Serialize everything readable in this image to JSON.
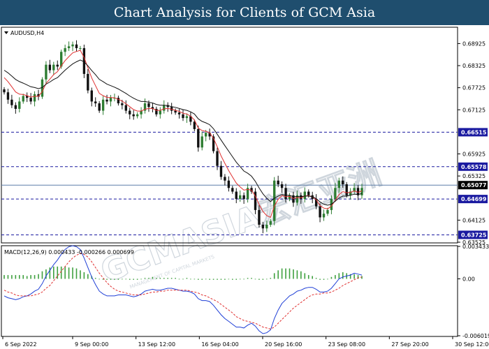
{
  "header": {
    "title": "Chart Analysis for Clients of GCM Asia"
  },
  "watermark": {
    "main": "GCMASIA宏汇亚洲",
    "sub": "MANAGEMENT OF CAPITAL MARKETS"
  },
  "main_panel": {
    "symbol_label": "AUDUSD,H4"
  },
  "macd_panel": {
    "label": "MACD(12,26,9) 0.000433 -0.000266 0.000699"
  },
  "colors": {
    "bull": "#2e7d32",
    "bear": "#111111",
    "ma_fast": "#e03030",
    "ma_slow": "#111111",
    "level": "#1a1aa0",
    "current": "#5f7fa8",
    "macd_line": "#1f3fd6",
    "signal_line": "#e03030",
    "histogram": "#3fa03f"
  },
  "chart_data": [
    {
      "type": "candlestick",
      "symbol": "AUDUSD",
      "timeframe": "H4",
      "ylim": [
        0.63525,
        0.6935
      ],
      "y_tick_labels": [
        "0.68925",
        "0.68325",
        "0.67725",
        "0.67125",
        "0.65925",
        "0.65325",
        "0.64125",
        "0.63525"
      ],
      "y_ticks": [
        0.68925,
        0.68325,
        0.67725,
        0.67125,
        0.65925,
        0.65325,
        0.64125,
        0.63525
      ],
      "x_tick_labels": [
        "6 Sep 2022",
        "9 Sep 00:00",
        "13 Sep 12:00",
        "16 Sep 04:00",
        "20 Sep 16:00",
        "23 Sep 08:00",
        "27 Sep 20:00",
        "30 Sep 12:00"
      ],
      "levels": [
        {
          "value": 0.66515,
          "label": "0.66515"
        },
        {
          "value": 0.65578,
          "label": "0.65578"
        },
        {
          "value": 0.64699,
          "label": "0.64699"
        },
        {
          "value": 0.63725,
          "label": "0.63725"
        }
      ],
      "current_price": {
        "value": 0.65077,
        "label": "0.65077"
      },
      "series": [
        {
          "name": "Close",
          "values": [
            0.676,
            0.674,
            0.6725,
            0.6715,
            0.6735,
            0.675,
            0.6745,
            0.6735,
            0.6755,
            0.6748,
            0.6795,
            0.6835,
            0.682,
            0.6835,
            0.683,
            0.687,
            0.688,
            0.6885,
            0.689,
            0.688,
            0.688,
            0.681,
            0.6765,
            0.6735,
            0.673,
            0.671,
            0.674,
            0.6735,
            0.6745,
            0.6745,
            0.673,
            0.6725,
            0.671,
            0.67,
            0.6695,
            0.67,
            0.671,
            0.673,
            0.672,
            0.6715,
            0.67,
            0.671,
            0.6725,
            0.672,
            0.671,
            0.6705,
            0.67,
            0.669,
            0.6695,
            0.668,
            0.666,
            0.661,
            0.664,
            0.665,
            0.664,
            0.66,
            0.656,
            0.653,
            0.652,
            0.65,
            0.649,
            0.647,
            0.648,
            0.647,
            0.65,
            0.649,
            0.644,
            0.64,
            0.639,
            0.64,
            0.641,
            0.652,
            0.651,
            0.65,
            0.647,
            0.648,
            0.646,
            0.648,
            0.647,
            0.649,
            0.648,
            0.647,
            0.645,
            0.642,
            0.643,
            0.644,
            0.647,
            0.65,
            0.652,
            0.651,
            0.648,
            0.649,
            0.65,
            0.648,
            0.65
          ]
        },
        {
          "name": "MA fast",
          "values": [
            0.68,
            0.6789,
            0.6775,
            0.6761,
            0.6755,
            0.6754,
            0.6751,
            0.6747,
            0.6749,
            0.6749,
            0.6762,
            0.6784,
            0.6796,
            0.6808,
            0.6816,
            0.6832,
            0.6846,
            0.6857,
            0.6867,
            0.6871,
            0.6874,
            0.6855,
            0.6827,
            0.6799,
            0.6778,
            0.6757,
            0.6751,
            0.6746,
            0.6746,
            0.6745,
            0.6741,
            0.6736,
            0.6729,
            0.6721,
            0.6713,
            0.6709,
            0.6709,
            0.6714,
            0.6716,
            0.6716,
            0.6711,
            0.6711,
            0.6715,
            0.6716,
            0.6714,
            0.6711,
            0.6708,
            0.6703,
            0.6701,
            0.6695,
            0.6685,
            0.6663,
            0.6656,
            0.6654,
            0.665,
            0.6635,
            0.6612,
            0.6587,
            0.6567,
            0.6547,
            0.653,
            0.6513,
            0.6503,
            0.6494,
            0.6496,
            0.6494,
            0.6478,
            0.6455,
            0.6436,
            0.6425,
            0.642,
            0.645,
            0.6469,
            0.6479,
            0.6476,
            0.6477,
            0.6471,
            0.6474,
            0.6473,
            0.6478,
            0.6479,
            0.6476,
            0.6468,
            0.6452,
            0.6445,
            0.6443,
            0.6451,
            0.6466,
            0.6482,
            0.649,
            0.6487,
            0.6488,
            0.6492,
            0.6488,
            0.6492
          ]
        },
        {
          "name": "MA slow",
          "values": [
            0.682,
            0.6813,
            0.6804,
            0.6795,
            0.6789,
            0.6785,
            0.678,
            0.6775,
            0.6773,
            0.677,
            0.6773,
            0.6782,
            0.6788,
            0.6795,
            0.68,
            0.681,
            0.682,
            0.6829,
            0.6837,
            0.6843,
            0.6848,
            0.6843,
            0.6832,
            0.6819,
            0.6808,
            0.6795,
            0.6789,
            0.6782,
            0.6778,
            0.6774,
            0.6769,
            0.6763,
            0.6757,
            0.675,
            0.6744,
            0.6739,
            0.6735,
            0.6735,
            0.6733,
            0.6731,
            0.6727,
            0.6725,
            0.6725,
            0.6724,
            0.6721,
            0.6719,
            0.6716,
            0.6713,
            0.6711,
            0.6707,
            0.6701,
            0.6688,
            0.6681,
            0.6677,
            0.6672,
            0.6661,
            0.6646,
            0.663,
            0.6615,
            0.66,
            0.6585,
            0.657,
            0.6558,
            0.6546,
            0.654,
            0.6532,
            0.6518,
            0.65,
            0.6484,
            0.6472,
            0.6463,
            0.6472,
            0.6478,
            0.6482,
            0.648,
            0.648,
            0.6476,
            0.6477,
            0.6476,
            0.6478,
            0.6478,
            0.6476,
            0.6471,
            0.6462,
            0.6456,
            0.6453,
            0.6456,
            0.6464,
            0.6473,
            0.6478,
            0.6478,
            0.648,
            0.6483,
            0.6482,
            0.6485
          ]
        }
      ]
    },
    {
      "type": "macd",
      "title": "MACD(12,26,9) 0.000433 -0.000266 0.000699",
      "ylim": [
        -0.006019,
        0.003433
      ],
      "y_tick_labels": [
        "0.003433",
        "0.00",
        "-0.006019"
      ],
      "y_ticks": [
        0.003433,
        0,
        -0.006019
      ],
      "series": [
        {
          "name": "MACD",
          "values": [
            -0.0018,
            -0.002,
            -0.0021,
            -0.0022,
            -0.0021,
            -0.0019,
            -0.0018,
            -0.0016,
            -0.0013,
            -0.0011,
            -0.0005,
            0.0003,
            0.0009,
            0.0015,
            0.002,
            0.0026,
            0.0031,
            0.0034,
            0.0035,
            0.0034,
            0.0031,
            0.0022,
            0.0012,
            0.0002,
            -0.0006,
            -0.0013,
            -0.0016,
            -0.0018,
            -0.0018,
            -0.0018,
            -0.0017,
            -0.0017,
            -0.0017,
            -0.0018,
            -0.0019,
            -0.0018,
            -0.0016,
            -0.0013,
            -0.0012,
            -0.0011,
            -0.0012,
            -0.0012,
            -0.0011,
            -0.001,
            -0.001,
            -0.0011,
            -0.0012,
            -0.0013,
            -0.0013,
            -0.0014,
            -0.0016,
            -0.0021,
            -0.0023,
            -0.0023,
            -0.0024,
            -0.0028,
            -0.0033,
            -0.0038,
            -0.0042,
            -0.0045,
            -0.0048,
            -0.0051,
            -0.0051,
            -0.0052,
            -0.0049,
            -0.0047,
            -0.005,
            -0.0055,
            -0.0058,
            -0.0057,
            -0.0054,
            -0.0042,
            -0.0033,
            -0.0026,
            -0.0022,
            -0.0018,
            -0.0016,
            -0.0013,
            -0.0012,
            -0.001,
            -0.0009,
            -0.0009,
            -0.0011,
            -0.0014,
            -0.0014,
            -0.0013,
            -0.001,
            -0.0005,
            0.0,
            0.0002,
            0.0003,
            0.0004,
            0.0006,
            0.0005,
            0.0004
          ]
        },
        {
          "name": "Signal",
          "values": [
            -0.0012,
            -0.0014,
            -0.0015,
            -0.0017,
            -0.0018,
            -0.0018,
            -0.0018,
            -0.0018,
            -0.0017,
            -0.0016,
            -0.0014,
            -0.001,
            -0.0007,
            -0.0002,
            0.0003,
            0.0008,
            0.0013,
            0.0018,
            0.0022,
            0.0025,
            0.0027,
            0.0026,
            0.0023,
            0.0018,
            0.0012,
            0.0006,
            0.0001,
            -0.0004,
            -0.0008,
            -0.0011,
            -0.0013,
            -0.0014,
            -0.0015,
            -0.0016,
            -0.0017,
            -0.0017,
            -0.0017,
            -0.0016,
            -0.0015,
            -0.0014,
            -0.0014,
            -0.0013,
            -0.0013,
            -0.0012,
            -0.0012,
            -0.0012,
            -0.0012,
            -0.0012,
            -0.0012,
            -0.0013,
            -0.0014,
            -0.0015,
            -0.0017,
            -0.0018,
            -0.002,
            -0.0022,
            -0.0024,
            -0.0027,
            -0.003,
            -0.0033,
            -0.0036,
            -0.004,
            -0.0042,
            -0.0044,
            -0.0045,
            -0.0046,
            -0.0047,
            -0.0049,
            -0.0051,
            -0.0052,
            -0.0053,
            -0.0051,
            -0.0047,
            -0.0043,
            -0.0039,
            -0.0035,
            -0.0031,
            -0.0028,
            -0.0025,
            -0.0022,
            -0.0019,
            -0.0017,
            -0.0016,
            -0.0016,
            -0.0015,
            -0.0015,
            -0.0014,
            -0.0012,
            -0.001,
            -0.0007,
            -0.0005,
            -0.0003,
            -0.0001,
            0.0001,
            0.0002
          ]
        },
        {
          "name": "Histogram",
          "values": [
            0.0004,
            0.0004,
            0.0004,
            0.0004,
            0.0004,
            0.0004,
            0.0003,
            0.0004,
            0.0004,
            0.0005,
            0.0008,
            0.001,
            0.0012,
            0.0013,
            0.0013,
            0.0013,
            0.0013,
            0.0012,
            0.0012,
            0.0011,
            0.0009,
            0.0007,
            0.0005,
            0.0003,
            0.0001,
            0.0,
            -0.0001,
            -0.0001,
            -0.0001,
            -0.0001,
            -0.0001,
            0.0,
            0.0,
            -0.0001,
            -0.0001,
            -0.0001,
            0.0,
            0.0001,
            0.0001,
            0.0002,
            0.0001,
            0.0001,
            0.0001,
            0.0001,
            0.0001,
            0.0001,
            0.0,
            0.0,
            0.0001,
            0.0,
            0.0,
            -0.0001,
            -0.0001,
            0.0,
            -0.0001,
            -0.0001,
            -0.0001,
            -0.0001,
            -0.0001,
            0.0,
            -0.0001,
            -0.0001,
            0.0,
            0.0,
            0.0001,
            0.0001,
            0.0,
            -0.0001,
            -0.0001,
            0.0,
            0.0001,
            0.0006,
            0.0009,
            0.0011,
            0.0011,
            0.0011,
            0.001,
            0.0009,
            0.0008,
            0.0006,
            0.0004,
            0.0003,
            0.0001,
            -0.0001,
            -0.0001,
            0.0,
            0.0002,
            0.0004,
            0.0006,
            0.0007,
            0.0006,
            0.0005,
            0.0005,
            0.0004,
            0.0003
          ]
        }
      ]
    }
  ]
}
